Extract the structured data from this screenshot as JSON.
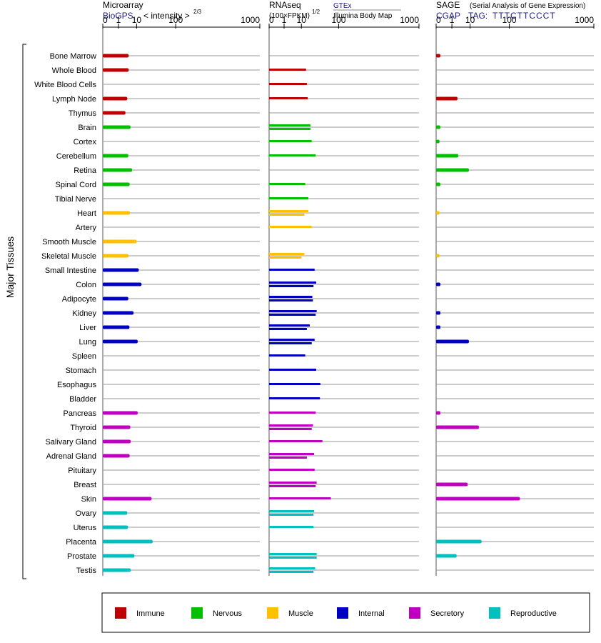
{
  "headers": {
    "microarray": {
      "title": "Microarray",
      "source": "BioGPS",
      "scale_label": "< intensity >",
      "scale_exp": "2/3"
    },
    "rnaseq": {
      "title": "RNAseq",
      "source1": "GTEx",
      "source2": "Illumina Body Map",
      "unit": "(100×FPKM)",
      "unit_exp": "1/2"
    },
    "sage": {
      "title": "SAGE",
      "subtitle": "(Serial Analysis of Gene Expression)",
      "source": "CGAP",
      "tag_label": "TAG:",
      "tag": "TTTCTTCCCT"
    }
  },
  "side_label": "Major Tissues",
  "axis_ticks": [
    "0",
    "1",
    "10",
    "100",
    "1000"
  ],
  "colors": {
    "Immune": "#c00000",
    "Nervous": "#00c000",
    "Muscle": "#ffc000",
    "Internal": "#0000c0",
    "Secretory": "#c000c0",
    "Reproductive": "#00c0c0"
  },
  "legend": [
    {
      "label": "Immune",
      "color": "#c00000"
    },
    {
      "label": "Nervous",
      "color": "#00c000"
    },
    {
      "label": "Muscle",
      "color": "#ffc000"
    },
    {
      "label": "Internal",
      "color": "#0000c0"
    },
    {
      "label": "Secretory",
      "color": "#c000c0"
    },
    {
      "label": "Reproductive",
      "color": "#00c0c0"
    }
  ],
  "chart_data": {
    "type": "bar",
    "orientation": "horizontal",
    "scale": "power",
    "xlim": [
      0,
      1000
    ],
    "tissues": [
      {
        "name": "Bone Marrow",
        "system": "Immune",
        "microarray": 4.5,
        "gtex": null,
        "ibm": null,
        "sage": 0.02
      },
      {
        "name": "Whole Blood",
        "system": "Immune",
        "microarray": 4.5,
        "gtex": 15,
        "ibm": null,
        "sage": null
      },
      {
        "name": "White Blood Cells",
        "system": "Immune",
        "microarray": null,
        "gtex": null,
        "ibm": 16,
        "sage": null
      },
      {
        "name": "Lymph Node",
        "system": "Immune",
        "microarray": 3.8,
        "gtex": null,
        "ibm": 17,
        "sage": 2.5
      },
      {
        "name": "Thymus",
        "system": "Immune",
        "microarray": 3.0,
        "gtex": null,
        "ibm": null,
        "sage": null
      },
      {
        "name": "Brain",
        "system": "Nervous",
        "microarray": 5.5,
        "gtex": 21,
        "ibm": 21,
        "sage": 0.02
      },
      {
        "name": "Cortex",
        "system": "Nervous",
        "microarray": null,
        "gtex": 23,
        "ibm": null,
        "sage": 0.01
      },
      {
        "name": "Cerebellum",
        "system": "Nervous",
        "microarray": 4.3,
        "gtex": 30,
        "ibm": null,
        "sage": 2.8
      },
      {
        "name": "Retina",
        "system": "Nervous",
        "microarray": 6.5,
        "gtex": null,
        "ibm": null,
        "sage": 9
      },
      {
        "name": "Spinal Cord",
        "system": "Nervous",
        "microarray": 5.0,
        "gtex": 14,
        "ibm": null,
        "sage": 0.02
      },
      {
        "name": "Tibial Nerve",
        "system": "Nervous",
        "microarray": null,
        "gtex": 18,
        "ibm": null,
        "sage": null
      },
      {
        "name": "Heart",
        "system": "Muscle",
        "microarray": 5.2,
        "gtex": 18,
        "ibm": 13,
        "sage": 0.01
      },
      {
        "name": "Artery",
        "system": "Muscle",
        "microarray": null,
        "gtex": 23,
        "ibm": null,
        "sage": null
      },
      {
        "name": "Smooth Muscle",
        "system": "Muscle",
        "microarray": 10,
        "gtex": null,
        "ibm": null,
        "sage": null
      },
      {
        "name": "Skeletal Muscle",
        "system": "Muscle",
        "microarray": 4.4,
        "gtex": 13,
        "ibm": 10,
        "sage": 0.01
      },
      {
        "name": "Small Intestine",
        "system": "Internal",
        "microarray": 12,
        "gtex": 28,
        "ibm": null,
        "sage": null
      },
      {
        "name": "Colon",
        "system": "Internal",
        "microarray": 15,
        "gtex": 31,
        "ibm": 26,
        "sage": 0.02
      },
      {
        "name": "Adipocyte",
        "system": "Internal",
        "microarray": 4.3,
        "gtex": 24,
        "ibm": 25,
        "sage": null
      },
      {
        "name": "Kidney",
        "system": "Internal",
        "microarray": 7.5,
        "gtex": 32,
        "ibm": 30,
        "sage": 0.02
      },
      {
        "name": "Liver",
        "system": "Internal",
        "microarray": 4.9,
        "gtex": 20,
        "ibm": 16,
        "sage": 0.02
      },
      {
        "name": "Lung",
        "system": "Internal",
        "microarray": 11,
        "gtex": 28,
        "ibm": 23,
        "sage": 9
      },
      {
        "name": "Spleen",
        "system": "Internal",
        "microarray": null,
        "gtex": 14,
        "ibm": null,
        "sage": null
      },
      {
        "name": "Stomach",
        "system": "Internal",
        "microarray": null,
        "gtex": 31,
        "ibm": null,
        "sage": null
      },
      {
        "name": "Esophagus",
        "system": "Internal",
        "microarray": null,
        "gtex": 40,
        "ibm": null,
        "sage": null
      },
      {
        "name": "Bladder",
        "system": "Internal",
        "microarray": null,
        "gtex": 39,
        "ibm": null,
        "sage": null
      },
      {
        "name": "Pancreas",
        "system": "Secretory",
        "microarray": 11,
        "gtex": 30,
        "ibm": null,
        "sage": 0.02
      },
      {
        "name": "Thyroid",
        "system": "Secretory",
        "microarray": 5.4,
        "gtex": 25,
        "ibm": 23,
        "sage": 20
      },
      {
        "name": "Salivary Gland",
        "system": "Secretory",
        "microarray": 5.6,
        "gtex": 45,
        "ibm": null,
        "sage": null
      },
      {
        "name": "Adrenal Gland",
        "system": "Secretory",
        "microarray": 5.0,
        "gtex": 27,
        "ibm": 16,
        "sage": null
      },
      {
        "name": "Pituitary",
        "system": "Secretory",
        "microarray": null,
        "gtex": 28,
        "ibm": null,
        "sage": null
      },
      {
        "name": "Breast",
        "system": "Secretory",
        "microarray": null,
        "gtex": 32,
        "ibm": 30,
        "sage": 8
      },
      {
        "name": "Skin",
        "system": "Secretory",
        "microarray": 30,
        "gtex": 70,
        "ibm": null,
        "sage": 150
      },
      {
        "name": "Ovary",
        "system": "Reproductive",
        "microarray": 3.8,
        "gtex": 27,
        "ibm": 26,
        "sage": null
      },
      {
        "name": "Uterus",
        "system": "Reproductive",
        "microarray": 4.1,
        "gtex": 26,
        "ibm": null,
        "sage": null
      },
      {
        "name": "Placenta",
        "system": "Reproductive",
        "microarray": 32,
        "gtex": null,
        "ibm": null,
        "sage": 24
      },
      {
        "name": "Prostate",
        "system": "Reproductive",
        "microarray": 8.2,
        "gtex": 32,
        "ibm": 32,
        "sage": 2.2
      },
      {
        "name": "Testis",
        "system": "Reproductive",
        "microarray": 5.6,
        "gtex": 29,
        "ibm": 26,
        "sage": null
      }
    ]
  }
}
